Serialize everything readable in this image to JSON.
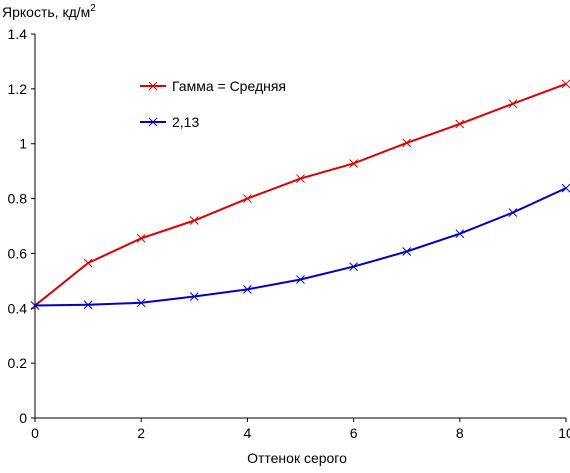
{
  "chart_data": {
    "type": "line",
    "title": "",
    "ylabel": "Яркость, кд/м",
    "ylabel_sup": "2",
    "xlabel": "Оттенок серого",
    "xlim": [
      0,
      10
    ],
    "ylim": [
      0,
      1.4
    ],
    "x_ticks": [
      0,
      2,
      4,
      6,
      8,
      10
    ],
    "y_ticks": [
      0,
      0.2,
      0.4,
      0.6,
      0.8,
      1,
      1.2,
      1.4
    ],
    "x_tick_labels": [
      "0",
      "2",
      "4",
      "6",
      "8",
      "10"
    ],
    "y_tick_labels": [
      "0",
      "0.2",
      "0.4",
      "0.6",
      "0.8",
      "1",
      "1.2",
      "1.4"
    ],
    "grid": false,
    "legend_position": "top-left",
    "x": [
      0,
      1,
      2,
      3,
      4,
      5,
      6,
      7,
      8,
      9,
      10
    ],
    "series": [
      {
        "name": "Гамма = Средняя",
        "color": "#e00000",
        "marker": "x",
        "values": [
          0.41,
          0.565,
          0.655,
          0.72,
          0.8,
          0.873,
          0.928,
          1.003,
          1.072,
          1.146,
          1.218
        ]
      },
      {
        "name": "2,13",
        "color": "#0000cc",
        "marker": "x",
        "values": [
          0.41,
          0.413,
          0.42,
          0.443,
          0.469,
          0.505,
          0.552,
          0.607,
          0.672,
          0.749,
          0.838
        ]
      }
    ]
  }
}
